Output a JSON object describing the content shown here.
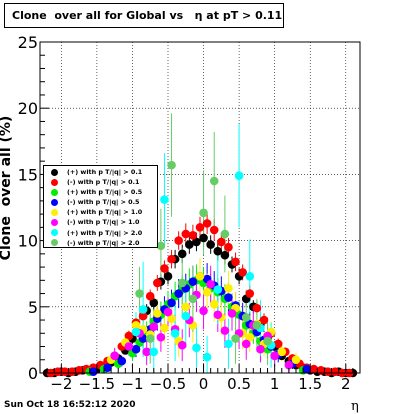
{
  "chart_data": {
    "type": "scatter",
    "title": "Clone  over all for Global vs   η at pT > 0.11",
    "xlabel": "η",
    "ylabel": "Clone  over all (%)",
    "xlim": [
      -2.3,
      2.2
    ],
    "ylim": [
      0,
      25
    ],
    "x_ticks": [
      -2,
      -1.5,
      -1,
      -0.5,
      0,
      0.5,
      1,
      1.5,
      2
    ],
    "x_tick_labels": [
      "−2",
      "−1.5",
      "−1",
      "−0.5",
      "0",
      "0.5",
      "1",
      "1.5",
      "2"
    ],
    "y_ticks": [
      0,
      5,
      10,
      15,
      20,
      25
    ],
    "y_tick_labels": [
      "0",
      "5",
      "10",
      "15",
      "20",
      "25"
    ],
    "grid": true,
    "legend_position": "left",
    "timestamp": "Sun Oct 18 16:52:12 2020",
    "series": [
      {
        "name": "(+) with p T/|q| > 0.1",
        "color": "#000000",
        "x": [
          -2.2,
          -2.1,
          -2.0,
          -1.9,
          -1.8,
          -1.7,
          -1.6,
          -1.5,
          -1.4,
          -1.3,
          -1.2,
          -1.1,
          -1.0,
          -0.9,
          -0.8,
          -0.7,
          -0.6,
          -0.5,
          -0.4,
          -0.3,
          -0.2,
          -0.1,
          0.0,
          0.1,
          0.2,
          0.3,
          0.4,
          0.5,
          0.6,
          0.7,
          0.8,
          0.9,
          1.0,
          1.1,
          1.2,
          1.3,
          1.4,
          1.5,
          1.6,
          1.7,
          1.8,
          1.9,
          2.0,
          2.1
        ],
        "y": [
          0.0,
          0.0,
          0.1,
          0.0,
          0.1,
          0.2,
          0.2,
          0.3,
          0.5,
          0.8,
          1.1,
          1.7,
          2.6,
          3.2,
          4.7,
          5.3,
          6.9,
          7.3,
          8.6,
          9.0,
          9.7,
          9.9,
          10.2,
          9.7,
          9.2,
          8.9,
          8.2,
          7.3,
          5.6,
          5.0,
          3.7,
          2.7,
          2.0,
          1.3,
          0.9,
          0.6,
          0.4,
          0.2,
          0.1,
          0.1,
          0.0,
          0.1,
          0.0,
          0.0
        ],
        "err": [
          0.1,
          0.1,
          0.1,
          0.1,
          0.1,
          0.1,
          0.1,
          0.1,
          0.2,
          0.2,
          0.3,
          0.3,
          0.4,
          0.4,
          0.5,
          0.5,
          0.6,
          0.6,
          0.7,
          0.7,
          0.7,
          0.7,
          0.7,
          0.7,
          0.7,
          0.7,
          0.6,
          0.6,
          0.6,
          0.5,
          0.5,
          0.4,
          0.4,
          0.3,
          0.3,
          0.2,
          0.2,
          0.1,
          0.1,
          0.1,
          0.1,
          0.1,
          0.1,
          0.1
        ]
      },
      {
        "name": "(-) with p T/|q| > 0.1",
        "color": "#ff0000",
        "x": [
          -2.15,
          -2.05,
          -1.95,
          -1.85,
          -1.75,
          -1.65,
          -1.55,
          -1.45,
          -1.35,
          -1.25,
          -1.15,
          -1.05,
          -0.95,
          -0.85,
          -0.75,
          -0.65,
          -0.55,
          -0.45,
          -0.35,
          -0.25,
          -0.15,
          -0.05,
          0.05,
          0.15,
          0.25,
          0.35,
          0.45,
          0.55,
          0.65,
          0.75,
          0.85,
          0.95,
          1.05,
          1.15,
          1.25,
          1.35,
          1.45,
          1.55,
          1.65,
          1.75,
          1.85,
          1.95,
          2.05
        ],
        "y": [
          0.0,
          0.1,
          0.1,
          0.1,
          0.2,
          0.3,
          0.4,
          0.6,
          0.9,
          1.3,
          2.0,
          2.8,
          3.8,
          4.3,
          5.8,
          6.8,
          7.9,
          8.6,
          10.0,
          10.5,
          10.4,
          11.0,
          11.3,
          10.8,
          9.9,
          9.5,
          8.4,
          7.6,
          6.0,
          4.9,
          4.0,
          3.0,
          2.2,
          1.6,
          1.1,
          0.7,
          0.4,
          0.3,
          0.2,
          0.1,
          0.1,
          0.0,
          0.0
        ],
        "err": [
          0.1,
          0.1,
          0.1,
          0.1,
          0.1,
          0.1,
          0.1,
          0.2,
          0.2,
          0.3,
          0.3,
          0.4,
          0.4,
          0.5,
          0.5,
          0.6,
          0.6,
          0.7,
          0.7,
          0.8,
          0.8,
          0.8,
          0.8,
          0.8,
          0.7,
          0.7,
          0.7,
          0.6,
          0.6,
          0.5,
          0.5,
          0.4,
          0.4,
          0.3,
          0.3,
          0.2,
          0.2,
          0.1,
          0.1,
          0.1,
          0.1,
          0.1,
          0.1
        ]
      },
      {
        "name": "(+) with p T/|q| > 0.5",
        "color": "#00ee00",
        "x": [
          -1.6,
          -1.4,
          -1.2,
          -1.0,
          -0.9,
          -0.8,
          -0.7,
          -0.6,
          -0.5,
          -0.4,
          -0.3,
          -0.2,
          -0.1,
          0.0,
          0.1,
          0.2,
          0.3,
          0.4,
          0.5,
          0.6,
          0.7,
          0.8,
          0.9,
          1.0,
          1.2,
          1.4
        ],
        "y": [
          0.1,
          0.3,
          0.7,
          1.5,
          2.3,
          3.1,
          3.9,
          4.4,
          5.2,
          5.8,
          6.3,
          6.7,
          7.0,
          6.8,
          6.4,
          6.1,
          5.6,
          5.0,
          4.4,
          3.6,
          3.0,
          2.4,
          1.8,
          1.3,
          0.6,
          0.2
        ],
        "err": [
          0.2,
          0.3,
          0.4,
          0.6,
          0.7,
          0.8,
          0.9,
          1.0,
          1.0,
          1.1,
          1.1,
          1.2,
          1.2,
          1.2,
          1.1,
          1.1,
          1.1,
          1.0,
          1.0,
          0.9,
          0.8,
          0.7,
          0.7,
          0.6,
          0.4,
          0.3
        ]
      },
      {
        "name": "(-) with p T/|q| > 0.5",
        "color": "#0000ff",
        "x": [
          -1.55,
          -1.35,
          -1.15,
          -0.95,
          -0.85,
          -0.75,
          -0.65,
          -0.55,
          -0.45,
          -0.35,
          -0.25,
          -0.15,
          -0.05,
          0.05,
          0.15,
          0.25,
          0.35,
          0.45,
          0.55,
          0.65,
          0.75,
          0.85,
          0.95,
          1.05,
          1.25,
          1.45
        ],
        "y": [
          0.1,
          0.4,
          0.9,
          1.8,
          2.6,
          3.3,
          4.1,
          4.8,
          5.3,
          6.0,
          6.4,
          6.9,
          7.3,
          7.1,
          6.6,
          6.2,
          5.7,
          5.1,
          4.3,
          3.7,
          3.1,
          2.5,
          2.0,
          1.4,
          0.7,
          0.3
        ],
        "err": [
          0.2,
          0.3,
          0.4,
          0.6,
          0.7,
          0.8,
          0.9,
          1.0,
          1.0,
          1.1,
          1.1,
          1.2,
          1.2,
          1.2,
          1.1,
          1.1,
          1.1,
          1.0,
          1.0,
          0.9,
          0.8,
          0.7,
          0.7,
          0.6,
          0.4,
          0.3
        ]
      },
      {
        "name": "(+) with p T/|q| > 1.0",
        "color": "#ffee00",
        "x": [
          -1.3,
          -1.1,
          -0.95,
          -0.85,
          -0.75,
          -0.65,
          -0.55,
          -0.45,
          -0.35,
          -0.25,
          -0.15,
          -0.05,
          0.05,
          0.15,
          0.25,
          0.35,
          0.45,
          0.55,
          0.65,
          0.75,
          0.85,
          0.95,
          1.1,
          1.3
        ],
        "y": [
          1.0,
          2.3,
          3.6,
          3.3,
          2.9,
          4.5,
          3.4,
          4.1,
          2.4,
          5.0,
          3.6,
          7.3,
          6.1,
          5.2,
          4.2,
          6.4,
          4.9,
          3.0,
          2.7,
          3.7,
          2.2,
          3.1,
          1.6,
          1.0
        ],
        "err": [
          0.5,
          0.7,
          0.9,
          1.0,
          1.0,
          1.1,
          1.1,
          1.2,
          1.2,
          1.3,
          1.3,
          1.4,
          1.4,
          1.3,
          1.3,
          1.3,
          1.2,
          1.2,
          1.1,
          1.0,
          0.9,
          0.8,
          0.7,
          0.5
        ]
      },
      {
        "name": "(-) with p T/|q| > 1.0",
        "color": "#ff00ff",
        "x": [
          -1.25,
          -1.05,
          -0.9,
          -0.8,
          -0.7,
          -0.6,
          -0.5,
          -0.4,
          -0.3,
          -0.2,
          -0.1,
          0.0,
          0.1,
          0.2,
          0.3,
          0.4,
          0.5,
          0.6,
          0.7,
          0.8,
          0.9,
          1.0,
          1.2
        ],
        "y": [
          1.3,
          2.0,
          3.0,
          1.6,
          3.5,
          2.7,
          4.6,
          3.3,
          2.1,
          4.0,
          5.9,
          4.7,
          6.7,
          4.4,
          3.2,
          4.5,
          3.0,
          2.2,
          3.6,
          1.8,
          2.8,
          1.3,
          0.6
        ],
        "err": [
          0.6,
          0.7,
          0.9,
          1.0,
          1.0,
          1.1,
          1.1,
          1.2,
          1.2,
          1.3,
          1.3,
          1.4,
          1.4,
          1.3,
          1.3,
          1.3,
          1.2,
          1.2,
          1.1,
          1.0,
          0.9,
          0.8,
          0.6
        ]
      },
      {
        "name": "(+) with p T/|q| > 2.0",
        "color": "#00ffff",
        "x": [
          -0.95,
          -0.85,
          -0.7,
          -0.55,
          -0.4,
          -0.25,
          -0.1,
          0.05,
          0.2,
          0.35,
          0.5,
          0.65,
          0.8,
          0.95
        ],
        "y": [
          3.1,
          4.8,
          1.6,
          13.1,
          3.0,
          4.3,
          1.9,
          1.2,
          6.3,
          2.2,
          14.9,
          7.3,
          3.4,
          2.1
        ],
        "err": [
          1.5,
          3.6,
          1.8,
          3.5,
          2.1,
          2.4,
          1.8,
          1.6,
          2.6,
          1.9,
          3.9,
          2.8,
          2.1,
          1.7
        ]
      },
      {
        "name": "(-) with p T/|q| > 2.0",
        "color": "#66cc66",
        "x": [
          -0.9,
          -0.75,
          -0.6,
          -0.45,
          -0.3,
          -0.15,
          0.0,
          0.15,
          0.3,
          0.45,
          0.6,
          0.75,
          0.9
        ],
        "y": [
          6.0,
          2.6,
          9.6,
          15.7,
          6.8,
          5.6,
          12.1,
          14.5,
          10.5,
          2.6,
          4.2,
          3.6,
          2.4
        ],
        "err": [
          2.0,
          1.9,
          2.8,
          3.9,
          2.6,
          2.5,
          3.2,
          3.7,
          2.9,
          1.9,
          2.1,
          2.0,
          1.8
        ]
      }
    ]
  }
}
